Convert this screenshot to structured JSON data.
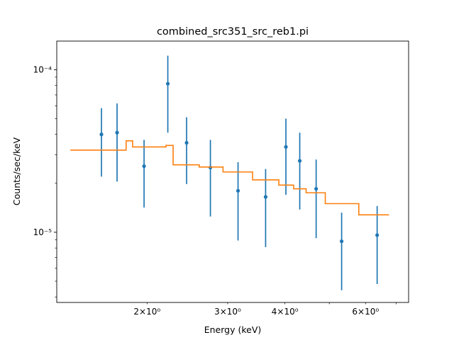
{
  "chart_data": {
    "type": "line",
    "title": "combined_src351_src_reb1.pi",
    "xlabel": "Energy (keV)",
    "ylabel": "Counts/sec/keV",
    "xscale": "log",
    "yscale": "log",
    "xlim": [
      1.27,
      7.45
    ],
    "ylim": [
      3.7e-06,
      0.00015
    ],
    "grid": false,
    "x_ticks": [
      {
        "value": 2,
        "label": "2×10⁰"
      },
      {
        "value": 3,
        "label": "3×10⁰"
      },
      {
        "value": 4,
        "label": "4×10⁰"
      },
      {
        "value": 6,
        "label": "6×10⁰"
      }
    ],
    "y_ticks": [
      {
        "value": 1e-05,
        "label": "10⁻⁵"
      },
      {
        "value": 0.0001,
        "label": "10⁻⁴"
      }
    ],
    "series": [
      {
        "kind": "errorbar",
        "color": "#1f77b4",
        "points": [
          {
            "x": 1.59,
            "y": 4e-05,
            "ylo": 2.2e-05,
            "yhi": 5.8e-05
          },
          {
            "x": 1.72,
            "y": 4.1e-05,
            "ylo": 2.05e-05,
            "yhi": 6.2e-05
          },
          {
            "x": 1.97,
            "y": 2.55e-05,
            "ylo": 1.42e-05,
            "yhi": 3.7e-05
          },
          {
            "x": 2.22,
            "y": 8.2e-05,
            "ylo": 4.1e-05,
            "yhi": 0.000122
          },
          {
            "x": 2.44,
            "y": 3.55e-05,
            "ylo": 1.98e-05,
            "yhi": 5.1e-05
          },
          {
            "x": 2.75,
            "y": 2.5e-05,
            "ylo": 1.25e-05,
            "yhi": 3.7e-05
          },
          {
            "x": 3.16,
            "y": 1.8e-05,
            "ylo": 8.9e-06,
            "yhi": 2.7e-05
          },
          {
            "x": 3.63,
            "y": 1.65e-05,
            "ylo": 8.1e-06,
            "yhi": 2.45e-05
          },
          {
            "x": 4.02,
            "y": 3.35e-05,
            "ylo": 1.7e-05,
            "yhi": 5e-05
          },
          {
            "x": 4.31,
            "y": 2.75e-05,
            "ylo": 1.38e-05,
            "yhi": 4.1e-05
          },
          {
            "x": 4.68,
            "y": 1.85e-05,
            "ylo": 9.2e-06,
            "yhi": 2.8e-05
          },
          {
            "x": 5.32,
            "y": 8.8e-06,
            "ylo": 4.4e-06,
            "yhi": 1.32e-05
          },
          {
            "x": 6.36,
            "y": 9.6e-06,
            "ylo": 4.8e-06,
            "yhi": 1.45e-05
          }
        ]
      },
      {
        "kind": "step",
        "color": "#ff7f0e",
        "points": [
          {
            "x0": 1.36,
            "x1": 1.8,
            "y": 3.2e-05
          },
          {
            "x0": 1.8,
            "x1": 1.86,
            "y": 3.65e-05
          },
          {
            "x0": 1.86,
            "x1": 2.2,
            "y": 3.35e-05
          },
          {
            "x0": 2.2,
            "x1": 2.28,
            "y": 3.42e-05
          },
          {
            "x0": 2.28,
            "x1": 2.6,
            "y": 2.6e-05
          },
          {
            "x0": 2.6,
            "x1": 2.93,
            "y": 2.52e-05
          },
          {
            "x0": 2.93,
            "x1": 3.4,
            "y": 2.35e-05
          },
          {
            "x0": 3.4,
            "x1": 3.88,
            "y": 2.1e-05
          },
          {
            "x0": 3.88,
            "x1": 4.18,
            "y": 1.95e-05
          },
          {
            "x0": 4.18,
            "x1": 4.45,
            "y": 1.85e-05
          },
          {
            "x0": 4.45,
            "x1": 4.9,
            "y": 1.75e-05
          },
          {
            "x0": 4.9,
            "x1": 5.8,
            "y": 1.5e-05
          },
          {
            "x0": 5.8,
            "x1": 6.75,
            "y": 1.28e-05
          }
        ]
      }
    ]
  }
}
